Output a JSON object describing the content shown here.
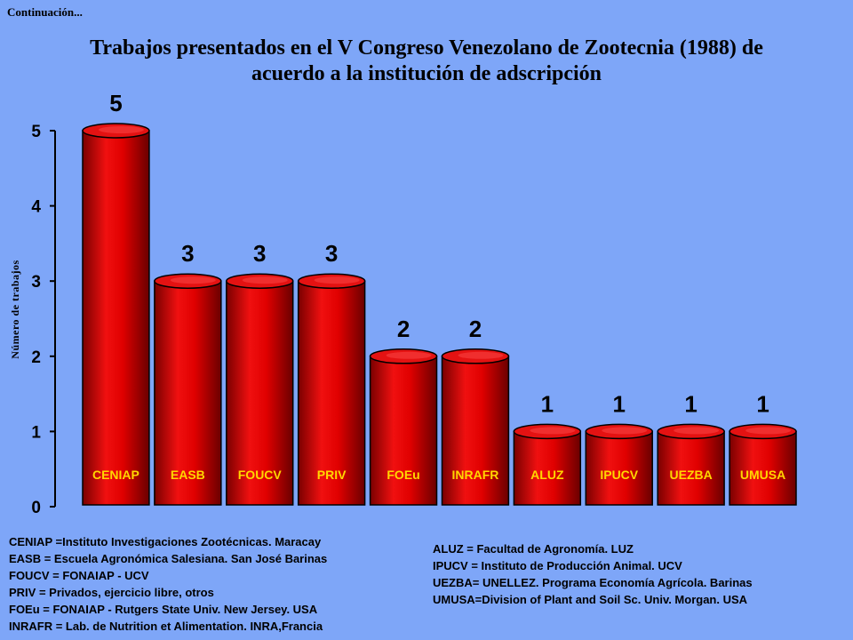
{
  "header": {
    "continuation": "Continuación...",
    "title_line1": "Trabajos presentados en el V Congreso Venezolano de Zootecnia (1988) de",
    "title_line2": "acuerdo a la institución de adscripción"
  },
  "colors": {
    "background": "#7ea6f8",
    "bar_fill": "#e00000",
    "bar_label": "#ffd700"
  },
  "chart_data": {
    "type": "bar",
    "title": "Trabajos presentados en el V Congreso Venezolano de Zootecnia (1988) de acuerdo a la institución de adscripción",
    "xlabel": "",
    "ylabel": "Número de trabajos",
    "categories": [
      "CENIAP",
      "EASB",
      "FOUCV",
      "PRIV",
      "FOEu",
      "INRAFR",
      "ALUZ",
      "IPUCV",
      "UEZBA",
      "UMUSA"
    ],
    "values": [
      5,
      3,
      3,
      3,
      2,
      2,
      1,
      1,
      1,
      1
    ],
    "ylim": [
      0,
      5
    ],
    "yticks": [
      "0",
      "1",
      "2",
      "3",
      "4",
      "5"
    ],
    "grid": false,
    "bar_shape": "cylinder"
  },
  "legend": {
    "left": [
      "CENIAP =Instituto Investigaciones Zootécnicas.  Maracay",
      "EASB = Escuela Agronómica Salesiana. San José Barinas",
      "FOUCV = FONAIAP  - UCV",
      "PRIV = Privados, ejercicio libre, otros",
      "FOEu = FONAIAP - Rutgers State Univ. New Jersey. USA",
      "INRAFR = Lab. de Nutrition et Alimentation.  INRA,Francia"
    ],
    "right": [
      "ALUZ = Facultad de Agronomía.  LUZ",
      "IPUCV = Instituto de Producción Animal.  UCV",
      "UEZBA= UNELLEZ. Programa Economía Agrícola.  Barinas",
      "UMUSA=Division of Plant and Soil Sc. Univ. Morgan. USA"
    ]
  }
}
